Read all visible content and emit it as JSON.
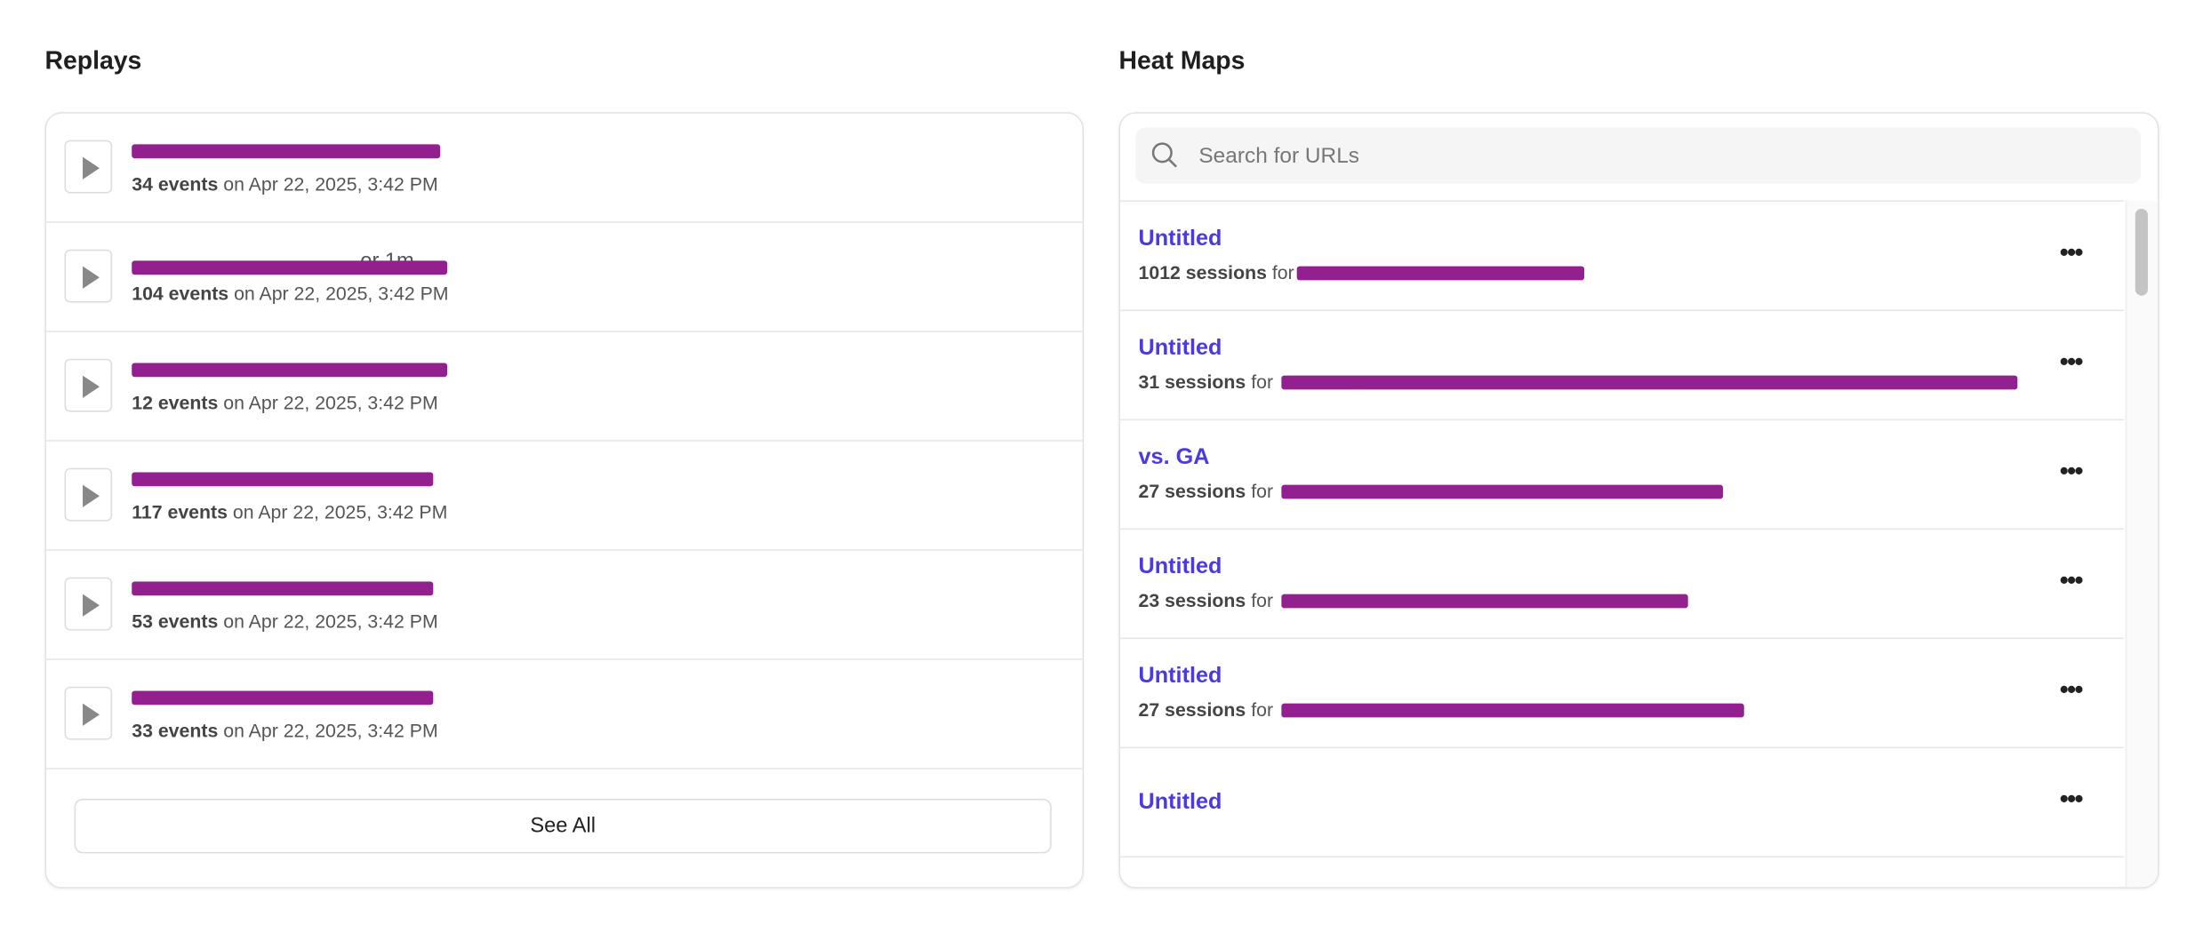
{
  "replays": {
    "title": "Replays",
    "items": [
      {
        "name_suffix": "",
        "events": "34 events",
        "date": "on Apr 22, 2025, 3:42 PM"
      },
      {
        "name_suffix": "or 1m",
        "events": "104 events",
        "date": "on Apr 22, 2025, 3:42 PM"
      },
      {
        "name_suffix": "",
        "events": "12 events",
        "date": "on Apr 22, 2025, 3:42 PM"
      },
      {
        "name_suffix": "",
        "events": "117 events",
        "date": "on Apr 22, 2025, 3:42 PM"
      },
      {
        "name_suffix": "",
        "events": "53 events",
        "date": "on Apr 22, 2025, 3:42 PM"
      },
      {
        "name_suffix": "",
        "events": "33 events",
        "date": "on Apr 22, 2025, 3:42 PM"
      }
    ],
    "see_all_label": "See All"
  },
  "heatmaps": {
    "title": "Heat Maps",
    "search_placeholder": "Search for URLs",
    "items": [
      {
        "title": "Untitled",
        "sessions": "1012 sessions",
        "for": "for"
      },
      {
        "title": "Untitled",
        "sessions": "31 sessions",
        "for": "for"
      },
      {
        "title": "vs. GA",
        "sessions": "27 sessions",
        "for": "for"
      },
      {
        "title": "Untitled",
        "sessions": "23 sessions",
        "for": "for"
      },
      {
        "title": "Untitled",
        "sessions": "27 sessions",
        "for": "for"
      },
      {
        "title": "Untitled"
      }
    ]
  },
  "colors": {
    "link": "#4a3ae0",
    "redaction": "#93208f"
  }
}
